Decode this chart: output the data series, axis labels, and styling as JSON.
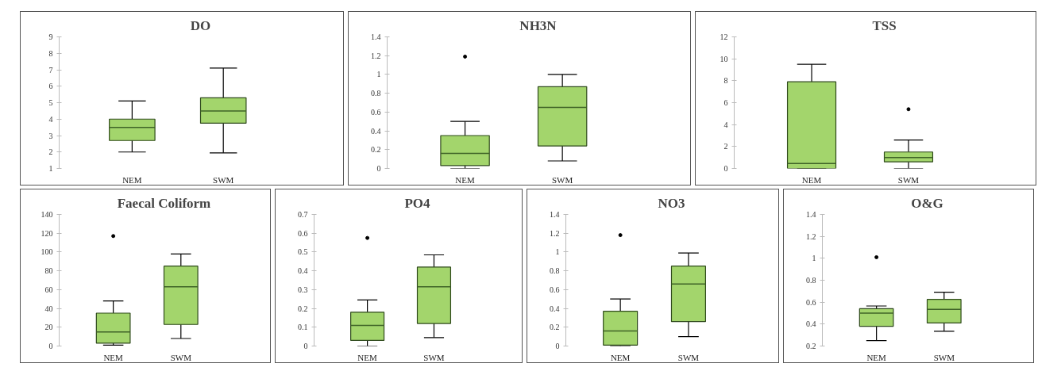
{
  "chart_data": [
    {
      "type": "box",
      "title": "DO",
      "categories": [
        "NEM",
        "SWM"
      ],
      "color": "#a3d56c",
      "ylim": [
        1,
        9
      ],
      "yticks": [
        1,
        2,
        3,
        4,
        5,
        6,
        7,
        8,
        9
      ],
      "boxes": [
        {
          "low": 2.0,
          "q1": 2.7,
          "median": 3.5,
          "q3": 4.0,
          "high": 5.1
        },
        {
          "low": 1.95,
          "q1": 3.75,
          "median": 4.5,
          "q3": 5.3,
          "high": 7.1
        }
      ]
    },
    {
      "type": "box",
      "title": "NH3N",
      "categories": [
        "NEM",
        "SWM"
      ],
      "color": "#a3d56c",
      "ylim": [
        0,
        1.4
      ],
      "yticks": [
        0,
        0.2,
        0.4,
        0.6,
        0.8,
        1,
        1.2,
        1.4
      ],
      "boxes": [
        {
          "low": 0.0,
          "q1": 0.03,
          "median": 0.16,
          "q3": 0.35,
          "high": 0.5,
          "outliers": [
            1.19
          ]
        },
        {
          "low": 0.08,
          "q1": 0.24,
          "median": 0.65,
          "q3": 0.87,
          "high": 1.0
        }
      ]
    },
    {
      "type": "box",
      "title": "TSS",
      "categories": [
        "NEM",
        "SWM"
      ],
      "color": "#a3d56c",
      "ylim": [
        0,
        12
      ],
      "yticks": [
        0,
        2,
        4,
        6,
        8,
        10,
        12
      ],
      "boxes": [
        {
          "low": 0.0,
          "q1": 0.0,
          "median": 0.45,
          "q3": 7.9,
          "high": 9.5
        },
        {
          "low": 0.0,
          "q1": 0.6,
          "median": 1.0,
          "q3": 1.5,
          "high": 2.6,
          "outliers": [
            5.4
          ]
        }
      ]
    },
    {
      "type": "box",
      "title": "Faecal Coliform",
      "categories": [
        "NEM",
        "SWM"
      ],
      "color": "#a3d56c",
      "ylim": [
        0,
        140
      ],
      "yticks": [
        0,
        20,
        40,
        60,
        80,
        100,
        120,
        140
      ],
      "boxes": [
        {
          "low": 1,
          "q1": 3,
          "median": 15,
          "q3": 35,
          "high": 48,
          "outliers": [
            117
          ]
        },
        {
          "low": 8,
          "q1": 23,
          "median": 63,
          "q3": 85,
          "high": 98
        }
      ]
    },
    {
      "type": "box",
      "title": "PO4",
      "categories": [
        "NEM",
        "SWM"
      ],
      "color": "#a3d56c",
      "ylim": [
        0,
        0.7
      ],
      "yticks": [
        0,
        0.1,
        0.2,
        0.3,
        0.4,
        0.5,
        0.6,
        0.7
      ],
      "boxes": [
        {
          "low": 0.0,
          "q1": 0.03,
          "median": 0.11,
          "q3": 0.18,
          "high": 0.245,
          "outliers": [
            0.575
          ]
        },
        {
          "low": 0.045,
          "q1": 0.12,
          "median": 0.315,
          "q3": 0.42,
          "high": 0.485
        }
      ]
    },
    {
      "type": "box",
      "title": "NO3",
      "categories": [
        "NEM",
        "SWM"
      ],
      "color": "#a3d56c",
      "ylim": [
        0,
        1.4
      ],
      "yticks": [
        0,
        0.2,
        0.4,
        0.6,
        0.8,
        1,
        1.2,
        1.4
      ],
      "boxes": [
        {
          "low": 0.0,
          "q1": 0.01,
          "median": 0.16,
          "q3": 0.37,
          "high": 0.5,
          "outliers": [
            1.18
          ]
        },
        {
          "low": 0.1,
          "q1": 0.26,
          "median": 0.66,
          "q3": 0.85,
          "high": 0.99
        }
      ]
    },
    {
      "type": "box",
      "title": "O&G",
      "categories": [
        "NEM",
        "SWM"
      ],
      "color": "#a3d56c",
      "ylim": [
        0.2,
        1.4
      ],
      "yticks": [
        0.2,
        0.4,
        0.6,
        0.8,
        1,
        1.2,
        1.4
      ],
      "boxes": [
        {
          "low": 0.25,
          "q1": 0.38,
          "median": 0.5,
          "q3": 0.54,
          "high": 0.565,
          "outliers": [
            1.01
          ]
        },
        {
          "low": 0.335,
          "q1": 0.41,
          "median": 0.535,
          "q3": 0.625,
          "high": 0.69
        }
      ]
    }
  ]
}
